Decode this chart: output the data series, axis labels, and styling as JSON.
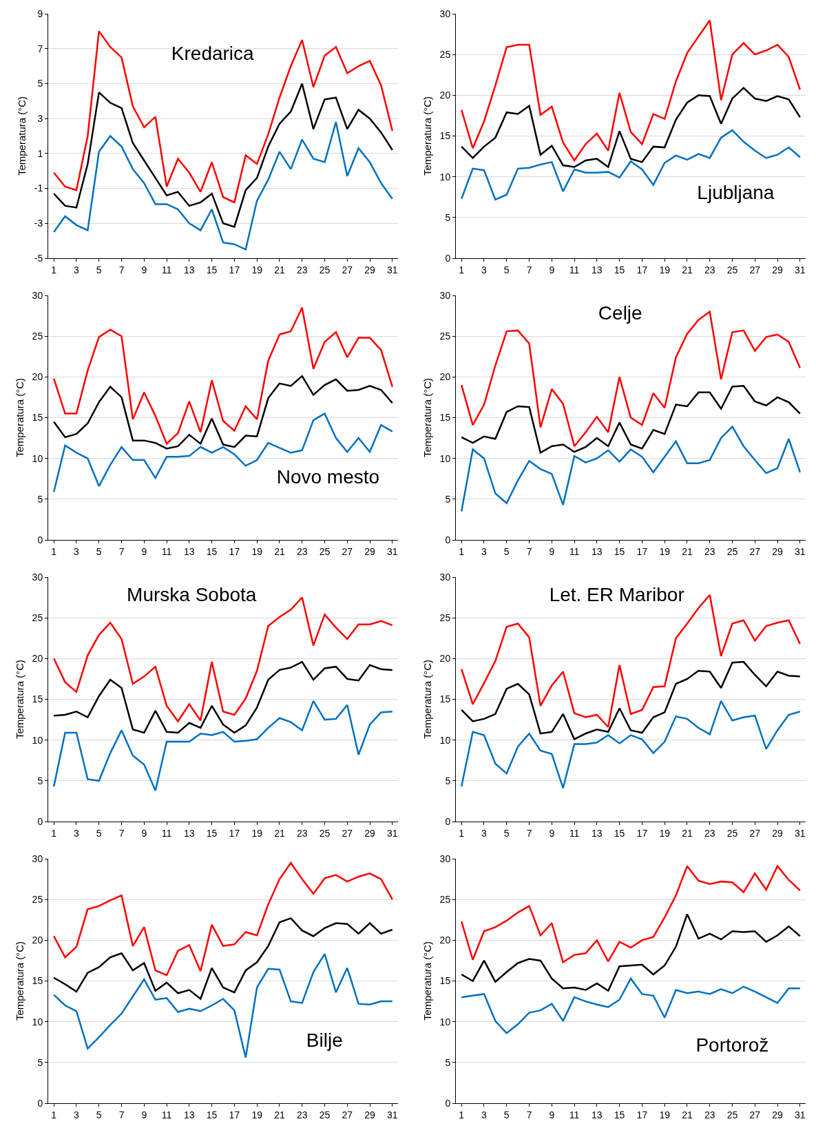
{
  "chart_data": [
    {
      "type": "line",
      "title": "Kredarica",
      "ylabel": "Temperatura (°C)",
      "x": [
        1,
        2,
        3,
        4,
        5,
        6,
        7,
        8,
        9,
        10,
        11,
        12,
        13,
        14,
        15,
        16,
        17,
        18,
        19,
        20,
        21,
        22,
        23,
        24,
        25,
        26,
        27,
        28,
        29,
        30,
        31
      ],
      "xlim": [
        0.5,
        31.5
      ],
      "xticks": [
        1,
        3,
        5,
        7,
        9,
        11,
        13,
        15,
        17,
        19,
        21,
        23,
        25,
        27,
        29,
        31
      ],
      "ylim": [
        -5,
        9
      ],
      "yticks": [
        -5,
        -3,
        -1,
        1,
        3,
        5,
        7,
        9
      ],
      "grid": "y",
      "marker": "none",
      "line_style": "solid",
      "series": [
        {
          "color": "#ff0000",
          "values": [
            -0.1,
            -0.9,
            -1.1,
            2.0,
            8.0,
            7.1,
            6.5,
            3.7,
            2.5,
            3.1,
            -0.9,
            0.7,
            -0.1,
            -1.2,
            0.5,
            -1.5,
            -1.8,
            0.9,
            0.4,
            2.1,
            4.2,
            6.0,
            7.5,
            4.8,
            6.6,
            7.1,
            5.6,
            6.0,
            6.3,
            4.9,
            2.3
          ]
        },
        {
          "color": "#000000",
          "values": [
            -1.3,
            -2.0,
            -2.1,
            0.4,
            4.5,
            3.9,
            3.6,
            1.6,
            0.6,
            -0.4,
            -1.4,
            -1.2,
            -2.0,
            -1.8,
            -1.3,
            -3.0,
            -3.2,
            -1.1,
            -0.4,
            1.4,
            2.7,
            3.4,
            5.0,
            2.4,
            4.1,
            4.2,
            2.4,
            3.5,
            3.0,
            2.2,
            1.2
          ]
        },
        {
          "color": "#0070c0",
          "values": [
            -3.5,
            -2.6,
            -3.1,
            -3.4,
            1.1,
            2.0,
            1.4,
            0.1,
            -0.7,
            -1.9,
            -1.9,
            -2.2,
            -3.0,
            -3.4,
            -2.2,
            -4.1,
            -4.2,
            -4.5,
            -1.7,
            -0.5,
            1.1,
            0.1,
            1.8,
            0.7,
            0.5,
            2.8,
            -0.3,
            1.3,
            0.5,
            -0.7,
            -1.6
          ]
        }
      ]
    },
    {
      "type": "line",
      "title": "Ljubljana",
      "ylabel": "Temperatura (°C)",
      "x": [
        1,
        2,
        3,
        4,
        5,
        6,
        7,
        8,
        9,
        10,
        11,
        12,
        13,
        14,
        15,
        16,
        17,
        18,
        19,
        20,
        21,
        22,
        23,
        24,
        25,
        26,
        27,
        28,
        29,
        30,
        31
      ],
      "xlim": [
        0.5,
        31.5
      ],
      "xticks": [
        1,
        3,
        5,
        7,
        9,
        11,
        13,
        15,
        17,
        19,
        21,
        23,
        25,
        27,
        29,
        31
      ],
      "ylim": [
        0,
        30
      ],
      "yticks": [
        0,
        5,
        10,
        15,
        20,
        25,
        30
      ],
      "grid": "y",
      "marker": "none",
      "line_style": "solid",
      "series": [
        {
          "color": "#ff0000",
          "values": [
            18.2,
            13.5,
            16.8,
            21.2,
            25.9,
            26.2,
            26.2,
            17.6,
            18.6,
            14.2,
            12.0,
            14.0,
            15.3,
            13.2,
            20.3,
            15.5,
            14.0,
            17.7,
            17.1,
            21.7,
            25.2,
            27.2,
            29.2,
            19.4,
            25.0,
            26.4,
            25.0,
            25.5,
            26.2,
            24.7,
            20.7
          ]
        },
        {
          "color": "#000000",
          "values": [
            13.7,
            12.3,
            13.7,
            14.8,
            17.9,
            17.7,
            18.7,
            12.7,
            13.8,
            11.4,
            11.2,
            12.0,
            12.2,
            11.2,
            15.6,
            12.2,
            11.8,
            13.7,
            13.6,
            17.0,
            19.1,
            20.0,
            19.9,
            16.5,
            19.6,
            20.9,
            19.6,
            19.3,
            19.9,
            19.5,
            17.3
          ]
        },
        {
          "color": "#0070c0",
          "values": [
            7.3,
            11.0,
            10.8,
            7.2,
            7.8,
            11.0,
            11.1,
            11.5,
            11.8,
            8.2,
            10.9,
            10.5,
            10.5,
            10.6,
            9.9,
            11.9,
            10.9,
            9.0,
            11.7,
            12.6,
            12.1,
            12.8,
            12.3,
            14.8,
            15.7,
            14.3,
            13.2,
            12.3,
            12.7,
            13.6,
            12.4
          ]
        }
      ]
    },
    {
      "type": "line",
      "title": "Novo mesto",
      "ylabel": "Temperatura (°C)",
      "x": [
        1,
        2,
        3,
        4,
        5,
        6,
        7,
        8,
        9,
        10,
        11,
        12,
        13,
        14,
        15,
        16,
        17,
        18,
        19,
        20,
        21,
        22,
        23,
        24,
        25,
        26,
        27,
        28,
        29,
        30,
        31
      ],
      "xlim": [
        0.5,
        31.5
      ],
      "xticks": [
        1,
        3,
        5,
        7,
        9,
        11,
        13,
        15,
        17,
        19,
        21,
        23,
        25,
        27,
        29,
        31
      ],
      "ylim": [
        0,
        30
      ],
      "yticks": [
        0,
        5,
        10,
        15,
        20,
        25,
        30
      ],
      "grid": "y",
      "marker": "none",
      "line_style": "solid",
      "series": [
        {
          "color": "#ff0000",
          "values": [
            19.8,
            15.5,
            15.5,
            20.8,
            24.9,
            25.8,
            25.0,
            14.8,
            18.1,
            15.2,
            11.8,
            13.1,
            17.0,
            13.2,
            19.6,
            14.6,
            13.4,
            16.4,
            14.8,
            22.0,
            25.2,
            25.6,
            28.5,
            21.0,
            24.3,
            25.5,
            22.4,
            24.8,
            24.8,
            23.3,
            18.8
          ]
        },
        {
          "color": "#000000",
          "values": [
            14.5,
            12.6,
            13.0,
            14.3,
            16.9,
            18.8,
            17.5,
            12.2,
            12.2,
            11.9,
            11.2,
            11.5,
            12.9,
            11.8,
            14.9,
            11.7,
            11.4,
            12.8,
            12.7,
            17.4,
            19.2,
            18.9,
            20.1,
            17.8,
            19.0,
            19.7,
            18.3,
            18.4,
            18.9,
            18.4,
            16.8
          ]
        },
        {
          "color": "#0070c0",
          "values": [
            5.9,
            11.6,
            10.7,
            10.0,
            6.6,
            9.2,
            11.4,
            9.8,
            9.8,
            7.6,
            10.2,
            10.2,
            10.3,
            11.4,
            10.7,
            11.4,
            10.5,
            9.1,
            9.8,
            11.9,
            11.3,
            10.7,
            11.0,
            14.7,
            15.5,
            12.5,
            10.8,
            12.5,
            10.8,
            14.1,
            13.3
          ]
        }
      ]
    },
    {
      "type": "line",
      "title": "Celje",
      "ylabel": "Temperatura (°C)",
      "x": [
        1,
        2,
        3,
        4,
        5,
        6,
        7,
        8,
        9,
        10,
        11,
        12,
        13,
        14,
        15,
        16,
        17,
        18,
        19,
        20,
        21,
        22,
        23,
        24,
        25,
        26,
        27,
        28,
        29,
        30,
        31
      ],
      "xlim": [
        0.5,
        31.5
      ],
      "xticks": [
        1,
        3,
        5,
        7,
        9,
        11,
        13,
        15,
        17,
        19,
        21,
        23,
        25,
        27,
        29,
        31
      ],
      "ylim": [
        0,
        30
      ],
      "yticks": [
        0,
        5,
        10,
        15,
        20,
        25,
        30
      ],
      "grid": "y",
      "marker": "none",
      "line_style": "solid",
      "series": [
        {
          "color": "#ff0000",
          "values": [
            19.0,
            14.1,
            16.6,
            21.4,
            25.6,
            25.7,
            24.1,
            13.8,
            18.5,
            16.7,
            11.5,
            13.2,
            15.1,
            13.2,
            20.0,
            15.0,
            14.1,
            18.0,
            16.2,
            22.4,
            25.3,
            27.0,
            28.0,
            19.7,
            25.5,
            25.7,
            23.2,
            24.9,
            25.2,
            24.3,
            21.1
          ]
        },
        {
          "color": "#000000",
          "values": [
            12.6,
            11.9,
            12.7,
            12.4,
            15.7,
            16.4,
            16.3,
            10.7,
            11.5,
            11.7,
            10.8,
            11.4,
            12.5,
            11.5,
            14.4,
            11.7,
            11.2,
            13.5,
            13.0,
            16.6,
            16.4,
            18.1,
            18.1,
            16.1,
            18.8,
            18.9,
            17.0,
            16.5,
            17.5,
            16.9,
            15.5
          ]
        },
        {
          "color": "#0070c0",
          "values": [
            3.5,
            11.1,
            10.0,
            5.7,
            4.5,
            7.3,
            9.7,
            8.7,
            8.1,
            4.3,
            10.3,
            9.5,
            10.0,
            11.0,
            9.6,
            11.1,
            10.2,
            8.3,
            10.2,
            12.1,
            9.4,
            9.4,
            9.8,
            12.5,
            13.9,
            11.5,
            9.8,
            8.2,
            8.8,
            12.4,
            8.3
          ]
        }
      ]
    },
    {
      "type": "line",
      "title": "Murska Sobota",
      "ylabel": "Temperatura (°C)",
      "x": [
        1,
        2,
        3,
        4,
        5,
        6,
        7,
        8,
        9,
        10,
        11,
        12,
        13,
        14,
        15,
        16,
        17,
        18,
        19,
        20,
        21,
        22,
        23,
        24,
        25,
        26,
        27,
        28,
        29,
        30,
        31
      ],
      "xlim": [
        0.5,
        31.5
      ],
      "xticks": [
        1,
        3,
        5,
        7,
        9,
        11,
        13,
        15,
        17,
        19,
        21,
        23,
        25,
        27,
        29,
        31
      ],
      "ylim": [
        0,
        30
      ],
      "yticks": [
        0,
        5,
        10,
        15,
        20,
        25,
        30
      ],
      "grid": "y",
      "marker": "none",
      "line_style": "solid",
      "series": [
        {
          "color": "#ff0000",
          "values": [
            20.0,
            17.1,
            15.9,
            20.4,
            22.9,
            24.4,
            22.4,
            16.9,
            17.8,
            19.0,
            14.2,
            12.3,
            14.4,
            12.4,
            19.6,
            13.5,
            13.1,
            15.1,
            18.5,
            24.0,
            25.1,
            26.0,
            27.5,
            21.6,
            25.4,
            23.8,
            22.4,
            24.2,
            24.2,
            24.6,
            24.1
          ]
        },
        {
          "color": "#000000",
          "values": [
            13.0,
            13.1,
            13.5,
            12.8,
            15.4,
            17.4,
            16.4,
            11.3,
            10.9,
            13.6,
            11.0,
            10.9,
            12.1,
            11.5,
            14.2,
            11.9,
            10.9,
            11.8,
            14.0,
            17.4,
            18.6,
            18.9,
            19.6,
            17.4,
            18.8,
            19.0,
            17.5,
            17.3,
            19.2,
            18.7,
            18.6
          ]
        },
        {
          "color": "#0070c0",
          "values": [
            4.3,
            10.9,
            10.9,
            5.2,
            5.0,
            8.4,
            11.2,
            8.1,
            7.0,
            3.8,
            9.8,
            9.8,
            9.8,
            10.8,
            10.6,
            11.0,
            9.8,
            9.9,
            10.1,
            11.5,
            12.7,
            12.2,
            11.2,
            14.8,
            12.5,
            12.6,
            14.3,
            8.2,
            11.9,
            13.4,
            13.5
          ]
        }
      ]
    },
    {
      "type": "line",
      "title": "Let. ER Maribor",
      "ylabel": "Temperatura (°C)",
      "x": [
        1,
        2,
        3,
        4,
        5,
        6,
        7,
        8,
        9,
        10,
        11,
        12,
        13,
        14,
        15,
        16,
        17,
        18,
        19,
        20,
        21,
        22,
        23,
        24,
        25,
        26,
        27,
        28,
        29,
        30,
        31
      ],
      "xlim": [
        0.5,
        31.5
      ],
      "xticks": [
        1,
        3,
        5,
        7,
        9,
        11,
        13,
        15,
        17,
        19,
        21,
        23,
        25,
        27,
        29,
        31
      ],
      "ylim": [
        0,
        30
      ],
      "yticks": [
        0,
        5,
        10,
        15,
        20,
        25,
        30
      ],
      "grid": "y",
      "marker": "none",
      "line_style": "solid",
      "series": [
        {
          "color": "#ff0000",
          "values": [
            18.7,
            14.4,
            17.0,
            19.7,
            23.9,
            24.3,
            22.6,
            14.2,
            16.7,
            18.4,
            13.3,
            12.8,
            13.1,
            11.6,
            19.2,
            13.2,
            13.7,
            16.5,
            16.6,
            22.5,
            24.3,
            26.2,
            27.8,
            20.3,
            24.3,
            24.7,
            22.2,
            24.0,
            24.4,
            24.7,
            21.8
          ]
        },
        {
          "color": "#000000",
          "values": [
            13.7,
            12.3,
            12.6,
            13.2,
            16.3,
            16.9,
            15.6,
            10.8,
            11.0,
            13.2,
            10.1,
            10.8,
            11.3,
            11.0,
            13.9,
            11.2,
            10.9,
            12.8,
            13.4,
            16.9,
            17.5,
            18.5,
            18.4,
            16.4,
            19.5,
            19.6,
            18.0,
            16.6,
            18.4,
            17.9,
            17.8
          ]
        },
        {
          "color": "#0070c0",
          "values": [
            4.3,
            11.0,
            10.6,
            7.1,
            5.9,
            9.2,
            10.8,
            8.7,
            8.3,
            4.1,
            9.5,
            9.5,
            9.7,
            10.6,
            9.6,
            10.6,
            10.1,
            8.4,
            9.8,
            12.9,
            12.6,
            11.5,
            10.7,
            14.8,
            12.4,
            12.8,
            13.0,
            8.9,
            11.2,
            13.1,
            13.5
          ]
        }
      ]
    },
    {
      "type": "line",
      "title": "Bilje",
      "ylabel": "Temperatura (°C)",
      "x": [
        1,
        2,
        3,
        4,
        5,
        6,
        7,
        8,
        9,
        10,
        11,
        12,
        13,
        14,
        15,
        16,
        17,
        18,
        19,
        20,
        21,
        22,
        23,
        24,
        25,
        26,
        27,
        28,
        29,
        30,
        31
      ],
      "xlim": [
        0.5,
        31.5
      ],
      "xticks": [
        1,
        3,
        5,
        7,
        9,
        11,
        13,
        15,
        17,
        19,
        21,
        23,
        25,
        27,
        29,
        31
      ],
      "ylim": [
        0,
        30
      ],
      "yticks": [
        0,
        5,
        10,
        15,
        20,
        25,
        30
      ],
      "grid": "y",
      "marker": "none",
      "line_style": "solid",
      "series": [
        {
          "color": "#ff0000",
          "values": [
            20.5,
            17.9,
            19.2,
            23.8,
            24.2,
            24.9,
            25.5,
            19.3,
            21.6,
            16.3,
            15.7,
            18.7,
            19.4,
            16.2,
            21.9,
            19.3,
            19.5,
            21.0,
            20.6,
            24.4,
            27.5,
            29.5,
            27.5,
            25.7,
            27.6,
            28.0,
            27.2,
            27.8,
            28.2,
            27.5,
            25.0
          ]
        },
        {
          "color": "#000000",
          "values": [
            15.4,
            14.6,
            13.7,
            16.0,
            16.7,
            17.9,
            18.4,
            16.3,
            17.2,
            13.8,
            14.8,
            13.5,
            13.9,
            12.8,
            16.6,
            14.2,
            13.6,
            16.3,
            17.3,
            19.3,
            22.2,
            22.7,
            21.2,
            20.5,
            21.5,
            22.1,
            22.0,
            20.8,
            22.1,
            20.8,
            21.3
          ]
        },
        {
          "color": "#0070c0",
          "values": [
            13.3,
            12.0,
            11.3,
            6.7,
            8.1,
            9.6,
            11.0,
            13.1,
            15.2,
            12.7,
            12.9,
            11.2,
            11.6,
            11.3,
            12.0,
            12.8,
            11.4,
            5.6,
            14.2,
            16.5,
            16.4,
            12.5,
            12.3,
            16.1,
            18.3,
            13.6,
            16.6,
            12.2,
            12.1,
            12.5,
            12.5
          ]
        }
      ]
    },
    {
      "type": "line",
      "title": "Portorož",
      "ylabel": "Temperatura (°C)",
      "x": [
        1,
        2,
        3,
        4,
        5,
        6,
        7,
        8,
        9,
        10,
        11,
        12,
        13,
        14,
        15,
        16,
        17,
        18,
        19,
        20,
        21,
        22,
        23,
        24,
        25,
        26,
        27,
        28,
        29,
        30,
        31
      ],
      "xlim": [
        0.5,
        31.5
      ],
      "xticks": [
        1,
        3,
        5,
        7,
        9,
        11,
        13,
        15,
        17,
        19,
        21,
        23,
        25,
        27,
        29,
        31
      ],
      "ylim": [
        0,
        30
      ],
      "yticks": [
        0,
        5,
        10,
        15,
        20,
        25,
        30
      ],
      "grid": "y",
      "marker": "none",
      "line_style": "solid",
      "series": [
        {
          "color": "#ff0000",
          "values": [
            22.3,
            17.6,
            21.1,
            21.6,
            22.4,
            23.4,
            24.2,
            20.6,
            22.1,
            17.3,
            18.2,
            18.4,
            20.0,
            17.4,
            19.8,
            19.1,
            20.0,
            20.4,
            22.8,
            25.5,
            29.1,
            27.3,
            26.9,
            27.2,
            27.1,
            25.9,
            28.2,
            26.2,
            29.1,
            27.4,
            26.1
          ]
        },
        {
          "color": "#000000",
          "values": [
            15.8,
            15.0,
            17.5,
            14.9,
            16.1,
            17.2,
            17.7,
            17.5,
            15.3,
            14.1,
            14.2,
            13.9,
            14.7,
            13.8,
            16.8,
            16.9,
            17.0,
            15.8,
            16.9,
            19.2,
            23.2,
            20.2,
            20.8,
            20.1,
            21.1,
            21.0,
            21.1,
            19.8,
            20.6,
            21.7,
            20.5
          ]
        },
        {
          "color": "#0070c0",
          "values": [
            13.0,
            13.2,
            13.4,
            10.1,
            8.6,
            9.7,
            11.1,
            11.4,
            12.2,
            10.1,
            13.0,
            12.5,
            12.1,
            11.8,
            12.7,
            15.3,
            13.4,
            13.2,
            10.5,
            13.9,
            13.5,
            13.7,
            13.4,
            14.0,
            13.5,
            14.3,
            13.7,
            13.0,
            12.3,
            14.1,
            14.1
          ]
        }
      ]
    }
  ]
}
